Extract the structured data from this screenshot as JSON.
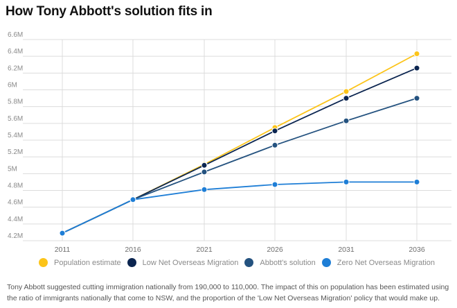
{
  "title": "How Tony Abbott's solution fits in",
  "chart_data": {
    "type": "line",
    "title": "How Tony Abbott's solution fits in",
    "xlabel": "",
    "ylabel": "",
    "x": [
      "2011",
      "2016",
      "2021",
      "2026",
      "2031",
      "2036"
    ],
    "yticks": [
      "6.6M",
      "6.4M",
      "6.2M",
      "6M",
      "5.8M",
      "5.6M",
      "5.4M",
      "5.2M",
      "5M",
      "4.8M",
      "4.6M",
      "4.4M",
      "4.2M"
    ],
    "ylim": [
      4.2,
      6.6
    ],
    "grid": true,
    "legend_position": "bottom",
    "series": [
      {
        "name": "Population estimate",
        "color": "#fcc419",
        "values": [
          4.29,
          4.69,
          5.11,
          5.55,
          5.98,
          6.43
        ]
      },
      {
        "name": "Low Net Overseas Migration",
        "color": "#0b2550",
        "values": [
          4.29,
          4.69,
          5.1,
          5.51,
          5.9,
          6.26
        ]
      },
      {
        "name": "Abbott's solution",
        "color": "#24527f",
        "values": [
          4.29,
          4.69,
          5.02,
          5.34,
          5.63,
          5.9
        ]
      },
      {
        "name": "Zero Net Overseas Migration",
        "color": "#1e7ed6",
        "values": [
          4.29,
          4.69,
          4.81,
          4.87,
          4.9,
          4.9
        ]
      }
    ]
  },
  "note": "Tony Abbott suggested cutting immigration nationally from 190,000 to 110,000. The impact of this on population has been estimated using the ratio of immigrants nationally that come to NSW, and the proportion of the 'Low Net Overseas Migration' policy that would make up."
}
